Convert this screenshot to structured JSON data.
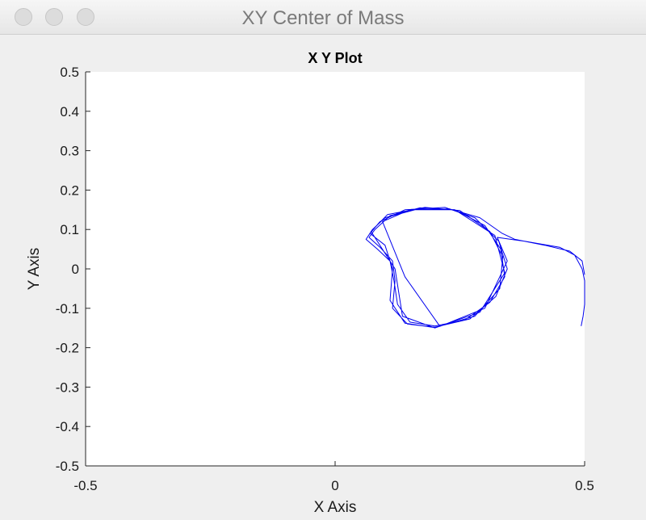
{
  "window": {
    "title": "XY Center of Mass"
  },
  "colors": {
    "trace": "#0000ee",
    "axes_bg": "#ffffff",
    "window_bg": "#efefef"
  },
  "chart_data": {
    "type": "line",
    "title": "X Y Plot",
    "xlabel": "X Axis",
    "ylabel": "Y Axis",
    "xlim": [
      -0.5,
      0.5
    ],
    "ylim": [
      -0.5,
      0.5
    ],
    "xticks": [
      "-0.5",
      "0",
      "0.5"
    ],
    "yticks": [
      "0.5",
      "0.4",
      "0.3",
      "0.2",
      "0.1",
      "0",
      "-0.1",
      "-0.2",
      "-0.3",
      "-0.4",
      "-0.5"
    ],
    "grid": false,
    "series": [
      {
        "values": [
          [
            0.5,
            -0.015
          ],
          [
            0.495,
            0.02
          ],
          [
            0.47,
            0.045
          ],
          [
            0.42,
            0.06
          ],
          [
            0.36,
            0.075
          ],
          [
            0.335,
            0.09
          ],
          [
            0.29,
            0.13
          ],
          [
            0.23,
            0.152
          ],
          [
            0.16,
            0.15
          ],
          [
            0.1,
            0.13
          ],
          [
            0.075,
            0.1
          ],
          [
            0.062,
            0.075
          ],
          [
            0.085,
            0.05
          ],
          [
            0.11,
            0.02
          ],
          [
            0.118,
            -0.03
          ],
          [
            0.125,
            -0.09
          ],
          [
            0.15,
            -0.135
          ],
          [
            0.2,
            -0.145
          ],
          [
            0.26,
            -0.13
          ],
          [
            0.31,
            -0.085
          ],
          [
            0.34,
            -0.02
          ],
          [
            0.332,
            0.05
          ],
          [
            0.3,
            0.11
          ],
          [
            0.24,
            0.15
          ],
          [
            0.17,
            0.155
          ],
          [
            0.11,
            0.135
          ],
          [
            0.08,
            0.1
          ],
          [
            0.068,
            0.08
          ],
          [
            0.09,
            0.055
          ],
          [
            0.115,
            0.02
          ],
          [
            0.12,
            -0.03
          ],
          [
            0.115,
            -0.1
          ],
          [
            0.145,
            -0.14
          ],
          [
            0.2,
            -0.148
          ],
          [
            0.27,
            -0.127
          ],
          [
            0.322,
            -0.07
          ],
          [
            0.345,
            0.0
          ],
          [
            0.328,
            0.07
          ],
          [
            0.28,
            0.13
          ],
          [
            0.22,
            0.156
          ],
          [
            0.14,
            0.15
          ],
          [
            0.09,
            0.12
          ],
          [
            0.07,
            0.09
          ],
          [
            0.1,
            0.06
          ],
          [
            0.115,
            0.0
          ],
          [
            0.11,
            -0.08
          ],
          [
            0.14,
            -0.138
          ],
          [
            0.2,
            -0.149
          ],
          [
            0.28,
            -0.12
          ],
          [
            0.33,
            -0.05
          ],
          [
            0.336,
            0.03
          ],
          [
            0.31,
            0.095
          ],
          [
            0.25,
            0.148
          ],
          [
            0.18,
            0.156
          ],
          [
            0.105,
            0.138
          ],
          [
            0.072,
            0.095
          ],
          [
            0.12,
            0.0
          ],
          [
            0.135,
            -0.12
          ],
          [
            0.2,
            -0.15
          ],
          [
            0.29,
            -0.11
          ],
          [
            0.34,
            -0.01
          ],
          [
            0.32,
            0.085
          ],
          [
            0.24,
            0.15
          ],
          [
            0.15,
            0.15
          ],
          [
            0.095,
            0.12
          ],
          [
            0.14,
            -0.02
          ],
          [
            0.21,
            -0.146
          ],
          [
            0.3,
            -0.1
          ],
          [
            0.345,
            0.02
          ],
          [
            0.325,
            0.08
          ],
          [
            0.38,
            0.07
          ],
          [
            0.45,
            0.055
          ],
          [
            0.48,
            0.035
          ],
          [
            0.495,
            0.0
          ],
          [
            0.5,
            -0.03
          ],
          [
            0.5,
            -0.09
          ],
          [
            0.497,
            -0.12
          ],
          [
            0.493,
            -0.145
          ]
        ]
      }
    ]
  }
}
